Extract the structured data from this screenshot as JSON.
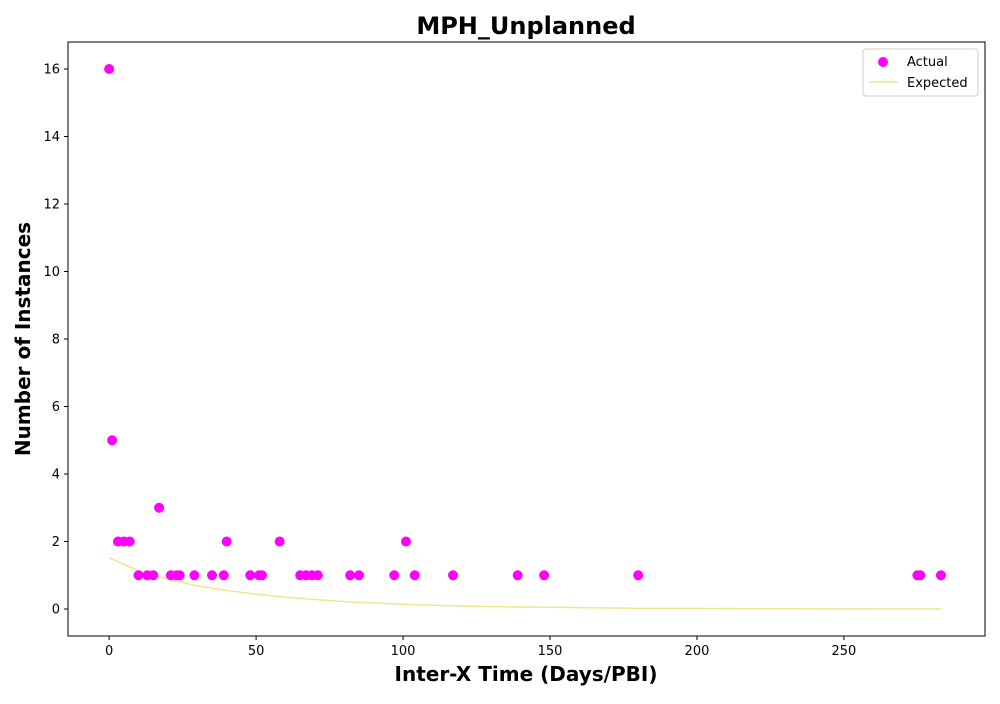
{
  "chart_data": {
    "type": "scatter",
    "title": "MPH_Unplanned",
    "xlabel": "Inter-X Time (Days/PBI)",
    "ylabel": "Number of Instances",
    "xlim": [
      -14,
      298
    ],
    "ylim": [
      -0.8,
      16.8
    ],
    "xticks": [
      0,
      50,
      100,
      150,
      200,
      250
    ],
    "yticks": [
      0,
      2,
      4,
      6,
      8,
      10,
      12,
      14,
      16
    ],
    "legend": "top-right",
    "grid": false,
    "series": [
      {
        "name": "Actual",
        "kind": "scatter",
        "color": "#ff00ff",
        "points": [
          [
            0,
            16
          ],
          [
            1,
            5
          ],
          [
            3,
            2
          ],
          [
            5,
            2
          ],
          [
            7,
            2
          ],
          [
            10,
            1
          ],
          [
            13,
            1
          ],
          [
            15,
            1
          ],
          [
            17,
            3
          ],
          [
            21,
            1
          ],
          [
            23,
            1
          ],
          [
            24,
            1
          ],
          [
            29,
            1
          ],
          [
            35,
            1
          ],
          [
            39,
            1
          ],
          [
            40,
            2
          ],
          [
            48,
            1
          ],
          [
            51,
            1
          ],
          [
            52,
            1
          ],
          [
            58,
            2
          ],
          [
            65,
            1
          ],
          [
            67,
            1
          ],
          [
            69,
            1
          ],
          [
            71,
            1
          ],
          [
            82,
            1
          ],
          [
            85,
            1
          ],
          [
            97,
            1
          ],
          [
            101,
            2
          ],
          [
            104,
            1
          ],
          [
            117,
            1
          ],
          [
            139,
            1
          ],
          [
            148,
            1
          ],
          [
            180,
            1
          ],
          [
            275,
            1
          ],
          [
            276,
            1
          ],
          [
            283,
            1
          ]
        ]
      },
      {
        "name": "Expected",
        "kind": "line",
        "color": "#f0e68c",
        "points": [
          [
            0,
            1.52
          ],
          [
            10,
            1.13
          ],
          [
            20,
            0.88
          ],
          [
            30,
            0.69
          ],
          [
            40,
            0.55
          ],
          [
            50,
            0.44
          ],
          [
            60,
            0.35
          ],
          [
            70,
            0.28
          ],
          [
            80,
            0.22
          ],
          [
            90,
            0.18
          ],
          [
            100,
            0.14
          ],
          [
            110,
            0.11
          ],
          [
            120,
            0.09
          ],
          [
            130,
            0.07
          ],
          [
            140,
            0.06
          ],
          [
            150,
            0.05
          ],
          [
            160,
            0.04
          ],
          [
            170,
            0.03
          ],
          [
            180,
            0.02
          ],
          [
            200,
            0.015
          ],
          [
            220,
            0.01
          ],
          [
            240,
            0.005
          ],
          [
            260,
            0.0
          ],
          [
            283,
            0.0
          ]
        ]
      }
    ]
  }
}
